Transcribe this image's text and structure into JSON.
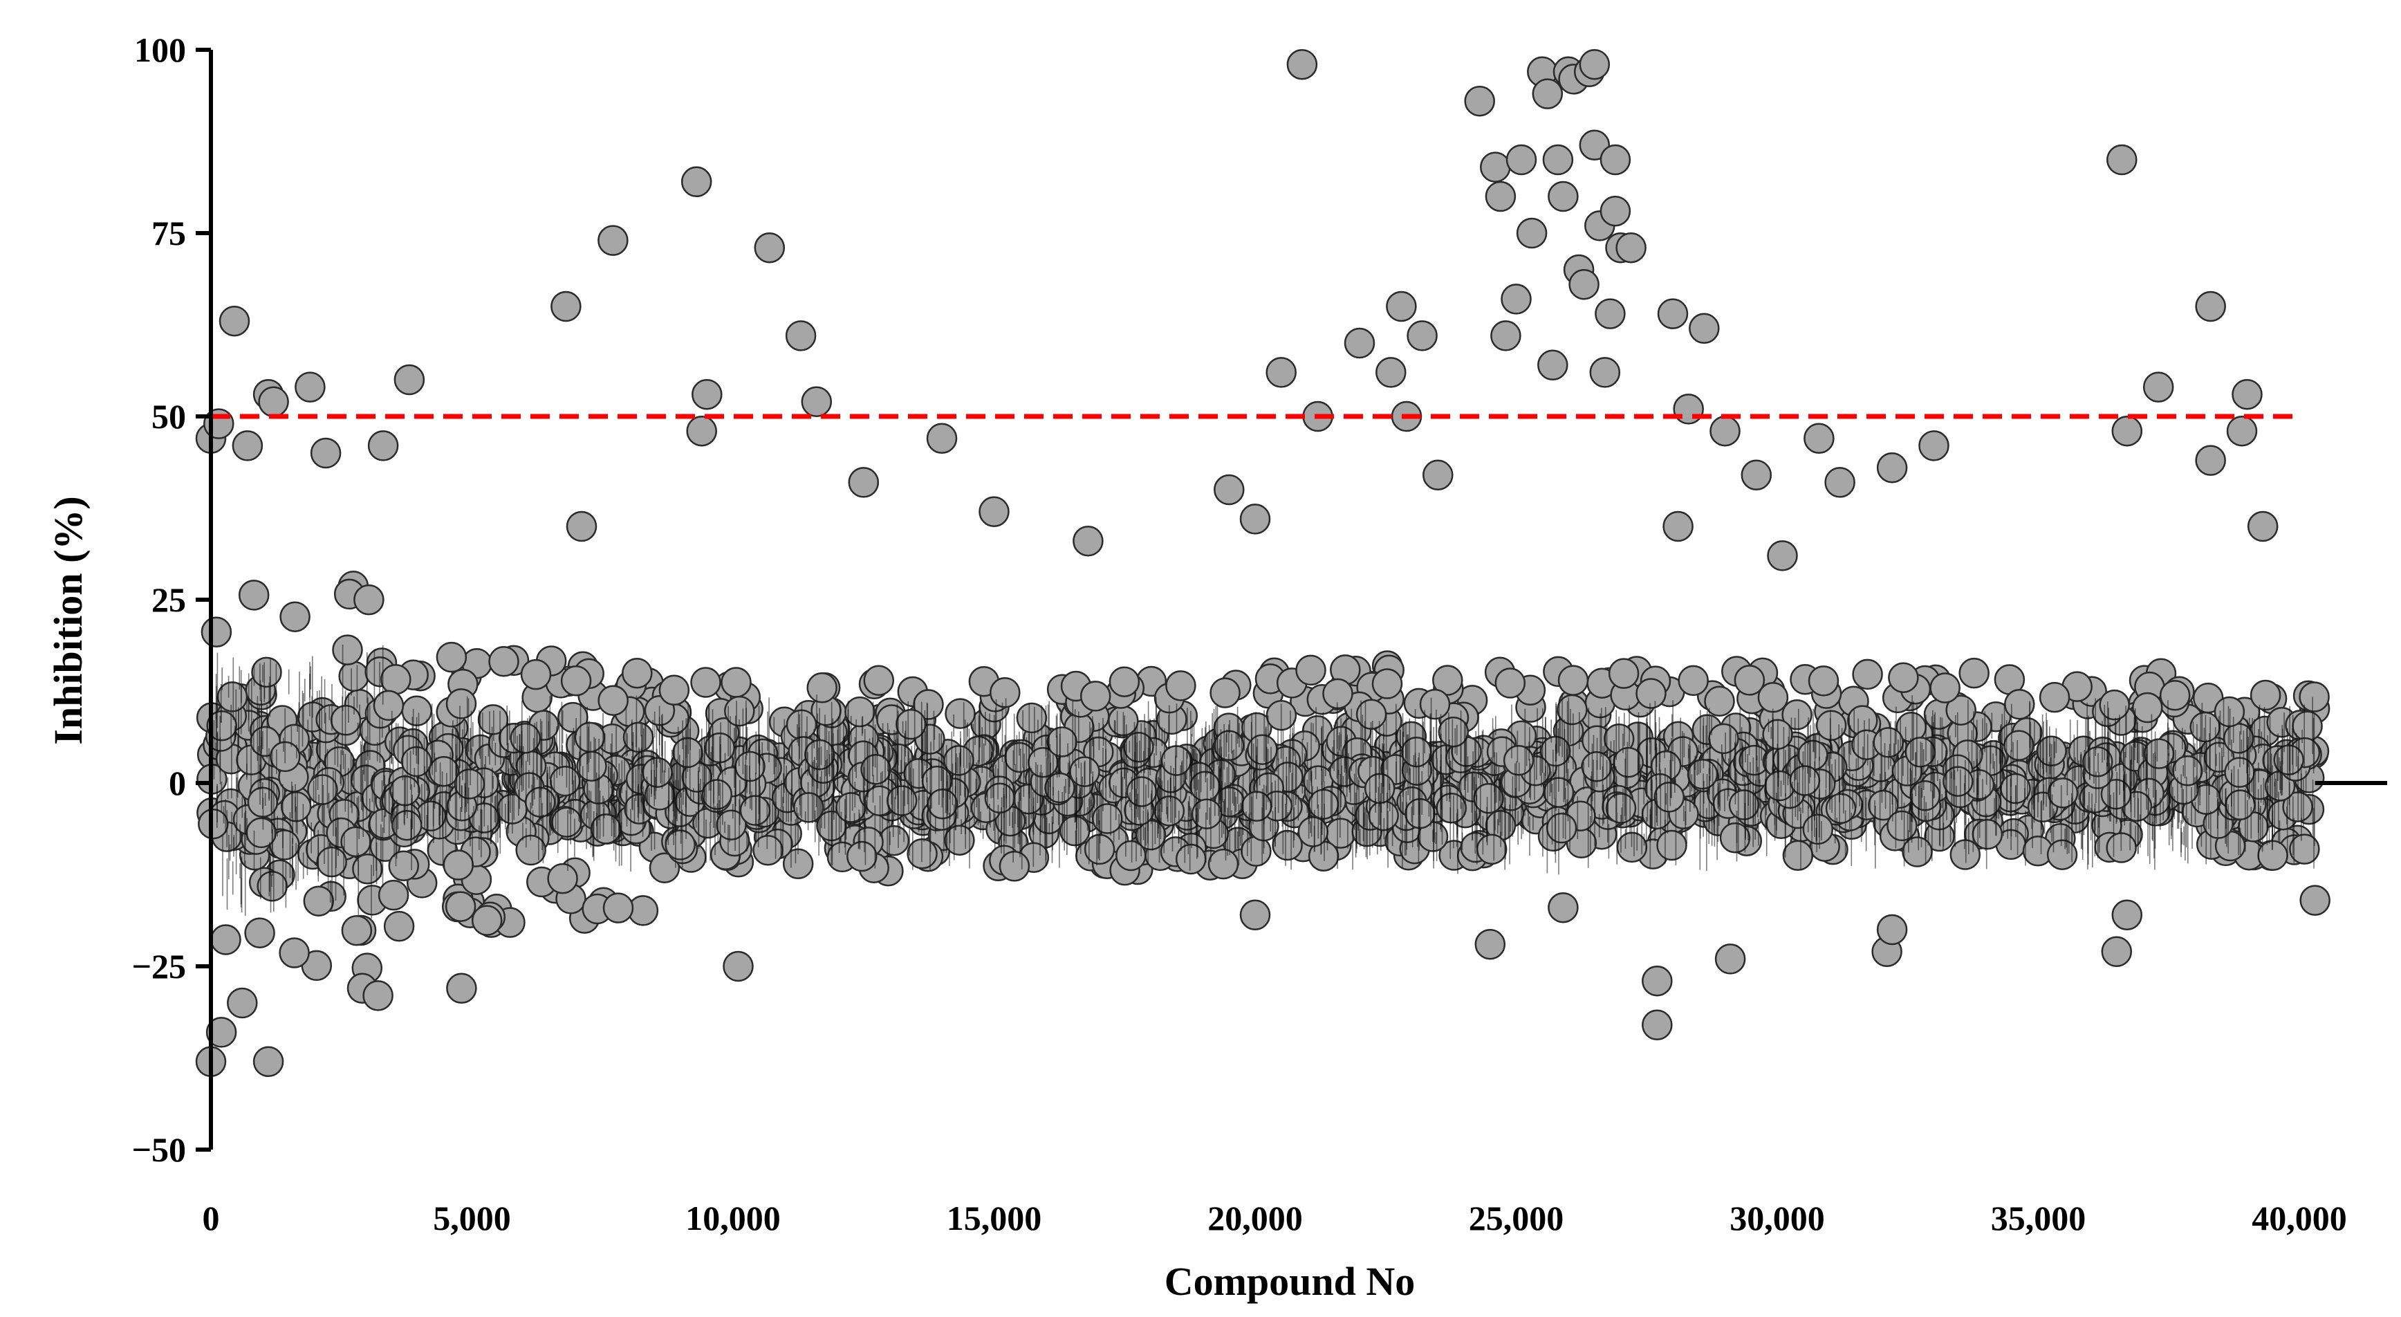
{
  "chart_data": {
    "type": "scatter",
    "title": "",
    "xlabel": "Compound No",
    "ylabel": "Inhibition (%)",
    "xlim": [
      0,
      40000
    ],
    "ylim": [
      -50,
      100
    ],
    "x_ticks": [
      0,
      5000,
      10000,
      15000,
      20000,
      25000,
      30000,
      35000,
      40000
    ],
    "x_tick_labels": [
      "0",
      "5,000",
      "10,000",
      "15,000",
      "20,000",
      "25,000",
      "30,000",
      "35,000",
      "40,000"
    ],
    "y_ticks": [
      -50,
      -25,
      0,
      25,
      50,
      75,
      100
    ],
    "y_tick_labels": [
      "−50",
      "−25",
      "0",
      "25",
      "50",
      "75",
      "100"
    ],
    "grid": false,
    "threshold_line": {
      "y": 50,
      "style": "dashed",
      "color": "#ff0000"
    },
    "colors": {
      "point_fill": "#a6a6a6",
      "point_edge": "#2b2b2b",
      "threshold": "#ff0000",
      "axis": "#000000"
    },
    "total_compounds_approx": 40300,
    "bulk_distribution_note_values": {
      "x_start": 0,
      "x_end": 40300,
      "segments": [
        {
          "x_from": 0,
          "x_to": 3300,
          "y_low": -26,
          "y_high": 27
        },
        {
          "x_from": 3300,
          "x_to": 8500,
          "y_low": -20,
          "y_high": 18
        },
        {
          "x_from": 8500,
          "x_to": 20000,
          "y_low": -12,
          "y_high": 14
        },
        {
          "x_from": 20000,
          "x_to": 30000,
          "y_low": -10,
          "y_high": 16
        },
        {
          "x_from": 30000,
          "x_to": 40300,
          "y_low": -10,
          "y_high": 15
        }
      ]
    },
    "highlighted_points": [
      {
        "x": 0,
        "y": 47
      },
      {
        "x": 150,
        "y": 49
      },
      {
        "x": 450,
        "y": 63
      },
      {
        "x": 700,
        "y": 46
      },
      {
        "x": 1100,
        "y": 53
      },
      {
        "x": 1200,
        "y": 52
      },
      {
        "x": 1900,
        "y": 54
      },
      {
        "x": 2200,
        "y": 45
      },
      {
        "x": 3300,
        "y": 46
      },
      {
        "x": 3800,
        "y": 55
      },
      {
        "x": 6800,
        "y": 65
      },
      {
        "x": 7100,
        "y": 35
      },
      {
        "x": 7700,
        "y": 74
      },
      {
        "x": 9300,
        "y": 82
      },
      {
        "x": 9500,
        "y": 53
      },
      {
        "x": 9400,
        "y": 48
      },
      {
        "x": 10700,
        "y": 73
      },
      {
        "x": 11300,
        "y": 61
      },
      {
        "x": 11600,
        "y": 52
      },
      {
        "x": 12500,
        "y": 41
      },
      {
        "x": 14000,
        "y": 47
      },
      {
        "x": 15000,
        "y": 37
      },
      {
        "x": 16800,
        "y": 33
      },
      {
        "x": 19500,
        "y": 40
      },
      {
        "x": 20000,
        "y": 36
      },
      {
        "x": 20500,
        "y": 56
      },
      {
        "x": 20900,
        "y": 98
      },
      {
        "x": 21200,
        "y": 50
      },
      {
        "x": 22000,
        "y": 60
      },
      {
        "x": 22600,
        "y": 56
      },
      {
        "x": 22800,
        "y": 65
      },
      {
        "x": 22900,
        "y": 50
      },
      {
        "x": 23200,
        "y": 61
      },
      {
        "x": 23500,
        "y": 42
      },
      {
        "x": 24300,
        "y": 93
      },
      {
        "x": 24600,
        "y": 84
      },
      {
        "x": 24700,
        "y": 80
      },
      {
        "x": 24800,
        "y": 61
      },
      {
        "x": 25000,
        "y": 66
      },
      {
        "x": 25100,
        "y": 85
      },
      {
        "x": 25300,
        "y": 75
      },
      {
        "x": 25500,
        "y": 97
      },
      {
        "x": 25600,
        "y": 94
      },
      {
        "x": 25700,
        "y": 57
      },
      {
        "x": 25800,
        "y": 85
      },
      {
        "x": 25900,
        "y": 80
      },
      {
        "x": 26000,
        "y": 97
      },
      {
        "x": 26100,
        "y": 96
      },
      {
        "x": 26200,
        "y": 70
      },
      {
        "x": 26300,
        "y": 68
      },
      {
        "x": 26400,
        "y": 97
      },
      {
        "x": 26500,
        "y": 98
      },
      {
        "x": 26500,
        "y": 87
      },
      {
        "x": 26600,
        "y": 76
      },
      {
        "x": 26700,
        "y": 56
      },
      {
        "x": 26800,
        "y": 64
      },
      {
        "x": 26900,
        "y": 85
      },
      {
        "x": 26900,
        "y": 78
      },
      {
        "x": 27000,
        "y": 73
      },
      {
        "x": 27200,
        "y": 73
      },
      {
        "x": 27700,
        "y": -27
      },
      {
        "x": 27700,
        "y": -33
      },
      {
        "x": 28000,
        "y": 64
      },
      {
        "x": 28100,
        "y": 35
      },
      {
        "x": 28300,
        "y": 51
      },
      {
        "x": 28600,
        "y": 62
      },
      {
        "x": 29000,
        "y": 48
      },
      {
        "x": 29100,
        "y": -24
      },
      {
        "x": 29600,
        "y": 42
      },
      {
        "x": 30100,
        "y": 31
      },
      {
        "x": 30800,
        "y": 47
      },
      {
        "x": 31200,
        "y": 41
      },
      {
        "x": 32200,
        "y": 43
      },
      {
        "x": 33000,
        "y": 46
      },
      {
        "x": 36600,
        "y": 85
      },
      {
        "x": 36700,
        "y": 48
      },
      {
        "x": 37300,
        "y": 54
      },
      {
        "x": 38300,
        "y": 65
      },
      {
        "x": 38300,
        "y": 44
      },
      {
        "x": 38900,
        "y": 48
      },
      {
        "x": 39000,
        "y": 53
      },
      {
        "x": 39300,
        "y": 35
      },
      {
        "x": 0,
        "y": -38
      },
      {
        "x": 200,
        "y": -34
      },
      {
        "x": 600,
        "y": -30
      },
      {
        "x": 1100,
        "y": -38
      },
      {
        "x": 2900,
        "y": -28
      },
      {
        "x": 3200,
        "y": -29
      },
      {
        "x": 4800,
        "y": -28
      },
      {
        "x": 10100,
        "y": -25
      },
      {
        "x": 20000,
        "y": -18
      },
      {
        "x": 24500,
        "y": -22
      },
      {
        "x": 25900,
        "y": -17
      },
      {
        "x": 32100,
        "y": -23
      },
      {
        "x": 32200,
        "y": -20
      },
      {
        "x": 36500,
        "y": -23
      },
      {
        "x": 36700,
        "y": -18
      },
      {
        "x": 40300,
        "y": -16
      }
    ]
  }
}
